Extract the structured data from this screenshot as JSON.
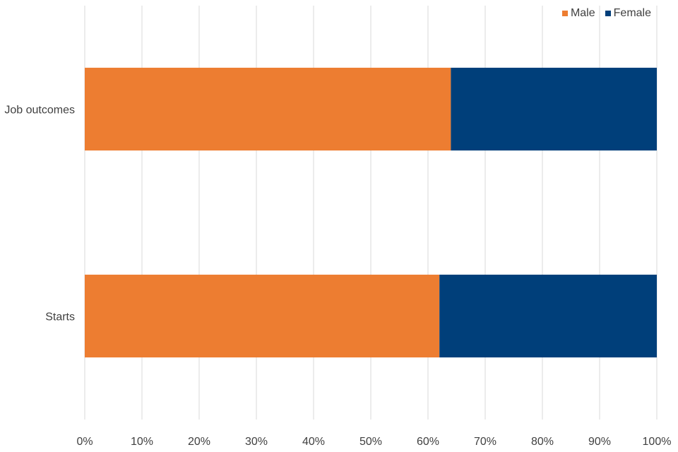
{
  "chart_data": {
    "type": "bar",
    "orientation": "horizontal",
    "stacked": true,
    "categories": [
      "Job outcomes",
      "Starts"
    ],
    "series": [
      {
        "name": "Male",
        "color": "#ED7D31",
        "values": [
          64,
          62
        ]
      },
      {
        "name": "Female",
        "color": "#003F7A",
        "values": [
          36,
          38
        ]
      }
    ],
    "xlim": [
      0,
      100
    ],
    "x_ticks": [
      "0%",
      "10%",
      "20%",
      "30%",
      "40%",
      "50%",
      "60%",
      "70%",
      "80%",
      "90%",
      "100%"
    ],
    "grid": "vertical",
    "legend_placement": "top-right",
    "title": "",
    "xlabel": "",
    "ylabel": ""
  }
}
